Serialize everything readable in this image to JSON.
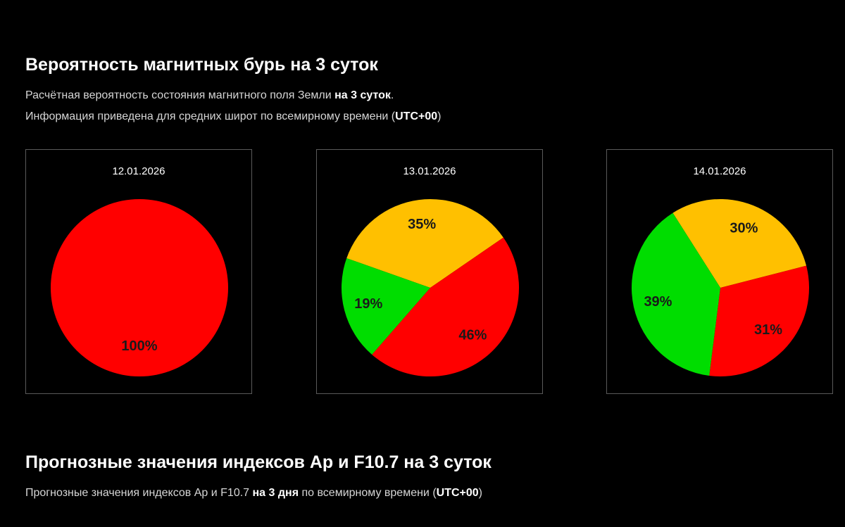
{
  "section1": {
    "title": "Вероятность магнитных бурь на 3 суток",
    "line1_prefix": "Расчётная вероятность состояния магнитного поля Земли ",
    "line1_bold": "на 3 суток",
    "line1_suffix": ".",
    "line2_prefix": "Информация приведена для средних широт по всемирному времени (",
    "line2_bold": "UTC+00",
    "line2_suffix": ")"
  },
  "section2": {
    "title": "Прогнозные значения индексов Ap и F10.7 на 3 суток",
    "line1_prefix": "Прогнозные значения индексов Ap и F10.7 ",
    "line1_bold": "на 3 дня",
    "line1_mid": " по всемирному времени (",
    "line1_bold2": "UTC+00",
    "line1_suffix": ")"
  },
  "colors": {
    "green": "#00DD00",
    "orange": "#FFC000",
    "red": "#FF0000"
  },
  "chart_data": [
    {
      "type": "pie",
      "title": "12.01.2026",
      "slices": [
        {
          "color": "red",
          "value": 100,
          "label": "100%"
        }
      ]
    },
    {
      "type": "pie",
      "title": "13.01.2026",
      "slices": [
        {
          "color": "orange",
          "value": 35,
          "label": "35%"
        },
        {
          "color": "red",
          "value": 46,
          "label": "46%"
        },
        {
          "color": "green",
          "value": 19,
          "label": "19%"
        }
      ]
    },
    {
      "type": "pie",
      "title": "14.01.2026",
      "slices": [
        {
          "color": "orange",
          "value": 30,
          "label": "30%"
        },
        {
          "color": "red",
          "value": 31,
          "label": "31%"
        },
        {
          "color": "green",
          "value": 39,
          "label": "39%"
        }
      ]
    }
  ]
}
